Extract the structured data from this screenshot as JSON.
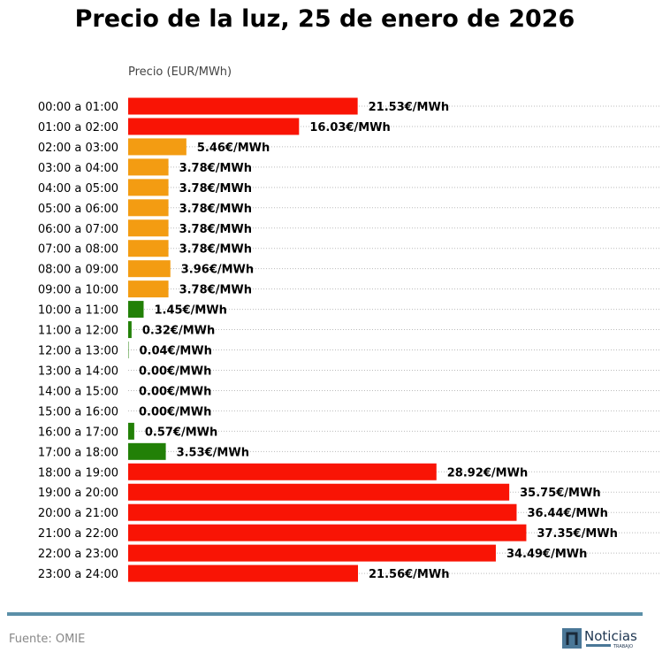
{
  "chart_data": {
    "type": "bar",
    "orientation": "horizontal",
    "title": "Precio de la luz, 25 de enero de 2026",
    "ylabel": "Precio (EUR/MWh)",
    "unit_suffix": "€/MWh",
    "categories": [
      "00:00 a 01:00",
      "01:00 a 02:00",
      "02:00 a 03:00",
      "03:00 a 04:00",
      "04:00 a 05:00",
      "05:00 a 06:00",
      "06:00 a 07:00",
      "07:00 a 08:00",
      "08:00 a 09:00",
      "09:00 a 10:00",
      "10:00 a 11:00",
      "11:00 a 12:00",
      "12:00 a 13:00",
      "13:00 a 14:00",
      "14:00 a 15:00",
      "15:00 a 16:00",
      "16:00 a 17:00",
      "17:00 a 18:00",
      "18:00 a 19:00",
      "19:00 a 20:00",
      "20:00 a 21:00",
      "21:00 a 22:00",
      "22:00 a 23:00",
      "23:00 a 24:00"
    ],
    "values": [
      21.53,
      16.03,
      5.46,
      3.78,
      3.78,
      3.78,
      3.78,
      3.78,
      3.96,
      3.78,
      1.45,
      0.32,
      0.04,
      0.0,
      0.0,
      0.0,
      0.57,
      3.53,
      28.92,
      35.75,
      36.44,
      37.35,
      34.49,
      21.56
    ],
    "levels": [
      "high",
      "high",
      "mid",
      "mid",
      "mid",
      "mid",
      "mid",
      "mid",
      "mid",
      "mid",
      "low",
      "low",
      "low",
      "low",
      "low",
      "low",
      "low",
      "low",
      "high",
      "high",
      "high",
      "high",
      "high",
      "high"
    ],
    "colors": {
      "high": "#f91405",
      "mid": "#f39c12",
      "low": "#228007"
    },
    "grid": "dotted horizontal",
    "xlim": [
      0,
      50
    ]
  },
  "footer": {
    "source": "Fuente: OMIE",
    "logo_text": "Noticias",
    "logo_subtext": "TRABAJO"
  },
  "colors": {
    "rule": "#5b8fa8",
    "logo_box": "#4a7797"
  }
}
